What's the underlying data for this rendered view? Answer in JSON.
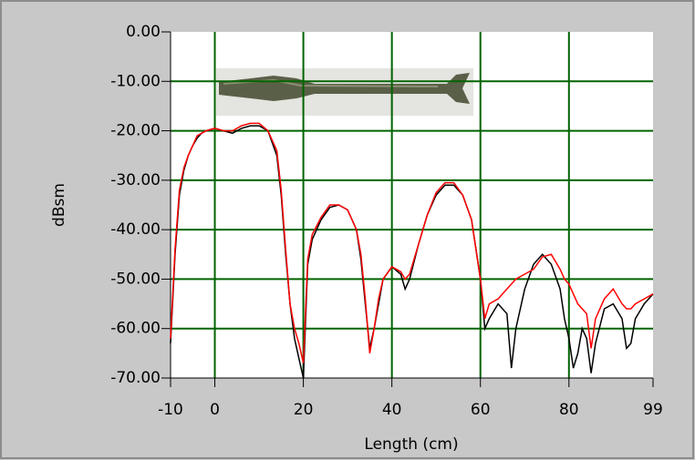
{
  "chart_data": {
    "type": "line",
    "xlabel": "Length (cm)",
    "ylabel": "dBsm",
    "xlim": [
      -10,
      99
    ],
    "ylim": [
      -70,
      0
    ],
    "xticks": [
      -10,
      0,
      20,
      40,
      60,
      80,
      99
    ],
    "yticks": [
      {
        "value": 0,
        "label": "0.00"
      },
      {
        "value": -10,
        "label": "-10.00"
      },
      {
        "value": -20,
        "label": "-20.00"
      },
      {
        "value": -30,
        "label": "-30.00"
      },
      {
        "value": -40,
        "label": "-40.00"
      },
      {
        "value": -50,
        "label": "-50.00"
      },
      {
        "value": -60,
        "label": "-60.00"
      },
      {
        "value": -70,
        "label": "-70.00"
      }
    ],
    "grid": true,
    "grid_color": "#006400",
    "x": [
      -10,
      -9,
      -8,
      -7,
      -6,
      -5,
      -4,
      -3,
      -2,
      0,
      2,
      4,
      6,
      8,
      10,
      12,
      14,
      15,
      16,
      17,
      18,
      19,
      20,
      21,
      22,
      24,
      26,
      28,
      30,
      32,
      33,
      34,
      35,
      36,
      37,
      38,
      40,
      42,
      43,
      44,
      46,
      48,
      50,
      52,
      54,
      56,
      58,
      59,
      60,
      61,
      62,
      64,
      66,
      67,
      68,
      70,
      72,
      74,
      76,
      78,
      79,
      80,
      81,
      82,
      83,
      84,
      85,
      86,
      88,
      90,
      92,
      93,
      94,
      95,
      97,
      99
    ],
    "series": [
      {
        "color": "#000000",
        "values": [
          -63,
          -45,
          -33,
          -28,
          -25,
          -23,
          -21.5,
          -20.5,
          -20,
          -19.5,
          -20,
          -20.5,
          -19.5,
          -19,
          -19,
          -20,
          -25,
          -33,
          -45,
          -55,
          -62,
          -66,
          -70,
          -47,
          -42,
          -38,
          -35.5,
          -35,
          -36,
          -40,
          -46,
          -55,
          -64,
          -60,
          -55,
          -50,
          -47.5,
          -49,
          -52,
          -50,
          -43,
          -37,
          -33,
          -31,
          -31,
          -33,
          -38,
          -44,
          -50,
          -60,
          -58,
          -55,
          -57,
          -68,
          -60,
          -52,
          -47,
          -45,
          -47,
          -52,
          -58,
          -62,
          -68,
          -65,
          -60,
          -62,
          -69,
          -63,
          -56,
          -55,
          -58,
          -64,
          -63,
          -58,
          -55,
          -53
        ]
      },
      {
        "color": "#ff0000",
        "values": [
          -62,
          -44,
          -32,
          -27.5,
          -25,
          -23,
          -21,
          -20.5,
          -20,
          -19.5,
          -20,
          -20,
          -19,
          -18.5,
          -18.5,
          -20,
          -24,
          -32,
          -44,
          -55,
          -60,
          -63,
          -67,
          -46,
          -41,
          -37.5,
          -35,
          -35,
          -36,
          -40,
          -45,
          -54,
          -65,
          -60,
          -54,
          -50,
          -47.5,
          -48.5,
          -50,
          -49,
          -43,
          -37,
          -32.5,
          -30.5,
          -30.5,
          -33,
          -38,
          -44,
          -50,
          -58,
          -55,
          -54,
          -52,
          -51,
          -50,
          -49,
          -48,
          -45.5,
          -45,
          -48,
          -50,
          -51,
          -53,
          -55,
          -56,
          -57,
          -64,
          -58,
          -54,
          -52,
          -55,
          -56,
          -56,
          -55,
          -54,
          -53
        ]
      }
    ]
  }
}
